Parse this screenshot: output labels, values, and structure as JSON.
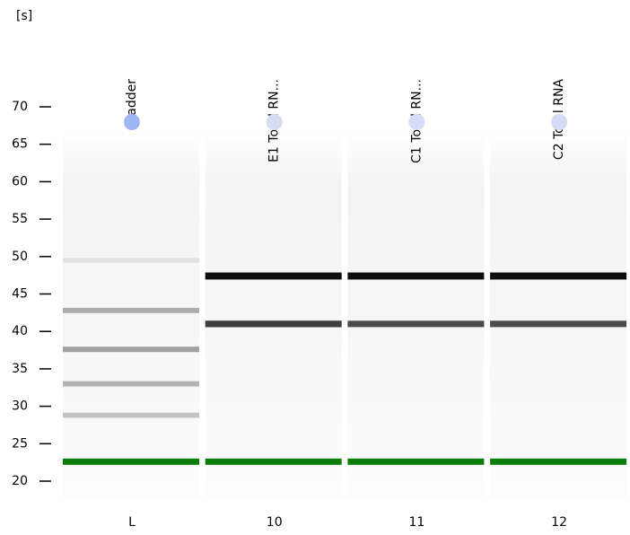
{
  "chart_data": {
    "type": "gel",
    "y_label": "[s]",
    "ylim": [
      20,
      70
    ],
    "yticks": [
      20,
      25,
      30,
      35,
      40,
      45,
      50,
      55,
      60,
      65,
      70
    ],
    "marker_color": "#0b7d0b",
    "band_color": "#000000",
    "lanes": [
      {
        "name": "Ladder",
        "label": "L",
        "dot_color": "#9fb6f2",
        "marker": 22.6,
        "bands": [
          49.5,
          42.8,
          37.6,
          33.0,
          28.8
        ],
        "intensities": [
          0.08,
          0.3,
          0.35,
          0.28,
          0.22
        ]
      },
      {
        "name": "E1 Total RN...",
        "label": "10",
        "dot_color": "#d6dcf6",
        "marker": 22.6,
        "bands": [
          47.4,
          41.0
        ],
        "intensities": [
          0.95,
          0.75
        ]
      },
      {
        "name": "C1 Total RN...",
        "label": "11",
        "dot_color": "#d6dcf6",
        "marker": 22.6,
        "bands": [
          47.4,
          41.0
        ],
        "intensities": [
          0.95,
          0.7
        ]
      },
      {
        "name": "C2 Total RNA",
        "label": "12",
        "dot_color": "#d6dcf6",
        "marker": 22.6,
        "bands": [
          47.4,
          41.0
        ],
        "intensities": [
          0.95,
          0.7
        ]
      }
    ]
  }
}
